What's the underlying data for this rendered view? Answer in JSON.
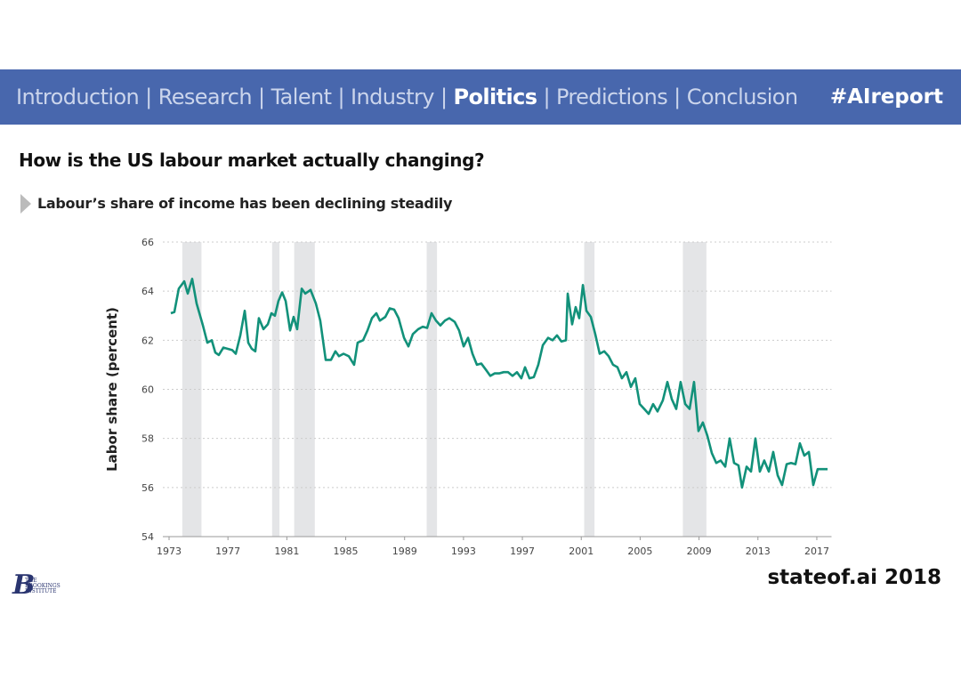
{
  "header": {
    "nav": [
      {
        "label": "Introduction",
        "active": false
      },
      {
        "label": "Research",
        "active": false
      },
      {
        "label": "Talent",
        "active": false
      },
      {
        "label": "Industry",
        "active": false
      },
      {
        "label": "Politics",
        "active": true
      },
      {
        "label": "Predictions",
        "active": false
      },
      {
        "label": "Conclusion",
        "active": false
      }
    ],
    "separator": "|",
    "hashtag": "#AIreport"
  },
  "title": "How is the US labour market actually changing?",
  "subtitle": "Labour’s share of income has been declining steadily",
  "logo": {
    "letter": "B",
    "lines": [
      "THE",
      "BROOKINGS",
      "INSTITUTE"
    ]
  },
  "footer": "stateof.ai 2018",
  "chart_data": {
    "type": "line",
    "y_label": "Labor share (percent)",
    "color": "#12917a",
    "xlim": [
      1973,
      2018
    ],
    "ylim": [
      54,
      66
    ],
    "xticks": [
      1973,
      1977,
      1981,
      1985,
      1989,
      1993,
      1997,
      2001,
      2005,
      2009,
      2013,
      2017
    ],
    "yticks": [
      54,
      56,
      58,
      60,
      62,
      64,
      66
    ],
    "grid": true,
    "recessions": [
      [
        1973.9,
        1975.2
      ],
      [
        1980.0,
        1980.5
      ],
      [
        1981.5,
        1982.9
      ],
      [
        1990.5,
        1991.2
      ],
      [
        2001.2,
        2001.9
      ],
      [
        2007.9,
        2009.5
      ]
    ],
    "x": [
      1973.12,
      1973.36,
      1973.66,
      1974.03,
      1974.27,
      1974.57,
      1974.87,
      1975.3,
      1975.6,
      1975.9,
      1976.14,
      1976.38,
      1976.69,
      1976.99,
      1977.29,
      1977.53,
      1977.84,
      1978.14,
      1978.38,
      1978.62,
      1978.86,
      1979.1,
      1979.41,
      1979.71,
      1979.95,
      1980.19,
      1980.43,
      1980.68,
      1980.92,
      1981.22,
      1981.46,
      1981.7,
      1982.01,
      1982.25,
      1982.61,
      1982.97,
      1983.27,
      1983.64,
      1984.0,
      1984.3,
      1984.54,
      1984.85,
      1985.21,
      1985.57,
      1985.81,
      1986.18,
      1986.48,
      1986.78,
      1987.08,
      1987.32,
      1987.69,
      1987.99,
      1988.29,
      1988.59,
      1988.96,
      1989.26,
      1989.56,
      1989.92,
      1990.23,
      1990.53,
      1990.83,
      1991.13,
      1991.43,
      1991.74,
      1992.04,
      1992.4,
      1992.7,
      1993.01,
      1993.31,
      1993.61,
      1993.91,
      1994.21,
      1994.52,
      1994.82,
      1995.12,
      1995.42,
      1995.73,
      1996.03,
      1996.33,
      1996.63,
      1996.93,
      1997.18,
      1997.48,
      1997.78,
      1998.08,
      1998.39,
      1998.75,
      1999.05,
      1999.35,
      1999.65,
      1999.96,
      2000.08,
      2000.38,
      2000.62,
      2000.86,
      2001.11,
      2001.35,
      2001.65,
      2001.95,
      2002.25,
      2002.56,
      2002.86,
      2003.16,
      2003.46,
      2003.76,
      2004.07,
      2004.37,
      2004.67,
      2004.97,
      2005.28,
      2005.58,
      2005.88,
      2006.18,
      2006.54,
      2006.85,
      2007.15,
      2007.45,
      2007.75,
      2008.06,
      2008.36,
      2008.66,
      2008.96,
      2009.26,
      2009.57,
      2009.87,
      2010.17,
      2010.47,
      2010.78,
      2011.08,
      2011.38,
      2011.68,
      2011.92,
      2012.23,
      2012.53,
      2012.83,
      2013.13,
      2013.43,
      2013.74,
      2014.04,
      2014.34,
      2014.64,
      2014.95,
      2015.25,
      2015.55,
      2015.85,
      2016.15,
      2016.46,
      2016.76,
      2017.06,
      2017.73
    ],
    "values": [
      63.1,
      63.15,
      64.1,
      64.4,
      63.9,
      64.5,
      63.5,
      62.6,
      61.9,
      62.0,
      61.5,
      61.4,
      61.7,
      61.65,
      61.6,
      61.45,
      62.2,
      63.2,
      61.9,
      61.65,
      61.55,
      62.9,
      62.45,
      62.65,
      63.1,
      63.0,
      63.6,
      63.95,
      63.6,
      62.4,
      62.95,
      62.45,
      64.1,
      63.9,
      64.05,
      63.5,
      62.8,
      61.2,
      61.2,
      61.55,
      61.35,
      61.45,
      61.35,
      61.0,
      61.9,
      62.0,
      62.4,
      62.9,
      63.1,
      62.8,
      62.95,
      63.3,
      63.25,
      62.9,
      62.1,
      61.75,
      62.25,
      62.45,
      62.55,
      62.5,
      63.1,
      62.8,
      62.6,
      62.8,
      62.9,
      62.75,
      62.4,
      61.75,
      62.1,
      61.45,
      61.0,
      61.05,
      60.8,
      60.55,
      60.65,
      60.65,
      60.7,
      60.7,
      60.55,
      60.7,
      60.45,
      60.9,
      60.45,
      60.5,
      61.0,
      61.8,
      62.1,
      62.0,
      62.2,
      61.95,
      62.0,
      63.9,
      62.65,
      63.35,
      62.9,
      64.25,
      63.2,
      62.95,
      62.25,
      61.45,
      61.55,
      61.35,
      61.0,
      60.9,
      60.45,
      60.7,
      60.1,
      60.45,
      59.4,
      59.2,
      59.0,
      59.4,
      59.1,
      59.55,
      60.3,
      59.6,
      59.2,
      60.3,
      59.4,
      59.2,
      60.3,
      58.3,
      58.65,
      58.1,
      57.4,
      57.0,
      57.1,
      56.85,
      58.0,
      57.0,
      56.9,
      56.0,
      56.85,
      56.65,
      58.0,
      56.65,
      57.1,
      56.65,
      57.45,
      56.5,
      56.1,
      56.95,
      57.0,
      56.95,
      57.8,
      57.3,
      57.45,
      56.1,
      56.75,
      56.75
    ]
  }
}
